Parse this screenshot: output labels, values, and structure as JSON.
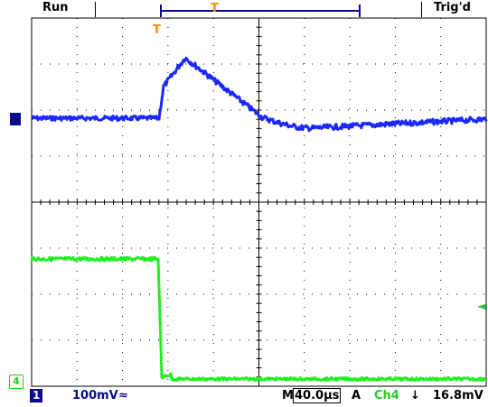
{
  "top_bar": {
    "run_status": "Run",
    "trigger_status": "Trig'd",
    "trigger_position_marker": "T",
    "waveform_trigger_marker": "T"
  },
  "bottom_bar": {
    "channel_1_label": "1",
    "channel_1_scale": "100mV",
    "channel_1_coupling_symbol": "≈",
    "timebase_prefix": "M",
    "timebase": "40.0µs",
    "trigger_mode": "A",
    "trigger_source": "Ch4",
    "trigger_slope_symbol": "↓",
    "trigger_level": "16.8mV"
  },
  "markers": {
    "channel_1_level_marker": "1",
    "channel_4_level_marker": "4",
    "trigger_level_arrow": "◄"
  },
  "colors": {
    "channel_1": "#1a28ff",
    "channel_4": "#22ee22",
    "trigger": "#ff8c00",
    "grid": "#000000",
    "channel_badge": "#0a0a8c"
  }
}
